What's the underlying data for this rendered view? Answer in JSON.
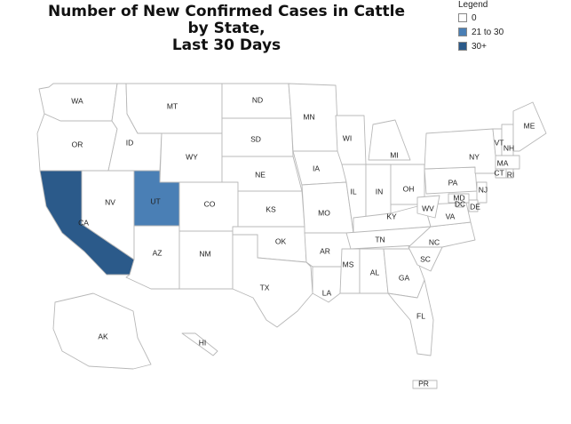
{
  "title": {
    "line1": "Number of New Confirmed Cases in Cattle by State,",
    "line2": "Last 30 Days"
  },
  "legend": {
    "title": "Legend",
    "items": [
      {
        "label": "0",
        "color": "#ffffff"
      },
      {
        "label": "21 to 30",
        "color": "#4a7fb5"
      },
      {
        "label": "30+",
        "color": "#2b5a8a"
      }
    ]
  },
  "states": [
    {
      "abbr": "WA",
      "category": "0"
    },
    {
      "abbr": "OR",
      "category": "0"
    },
    {
      "abbr": "CA",
      "category": "30+"
    },
    {
      "abbr": "NV",
      "category": "0"
    },
    {
      "abbr": "ID",
      "category": "0"
    },
    {
      "abbr": "MT",
      "category": "0"
    },
    {
      "abbr": "WY",
      "category": "0"
    },
    {
      "abbr": "UT",
      "category": "21 to 30"
    },
    {
      "abbr": "AZ",
      "category": "0"
    },
    {
      "abbr": "CO",
      "category": "0"
    },
    {
      "abbr": "NM",
      "category": "0"
    },
    {
      "abbr": "ND",
      "category": "0"
    },
    {
      "abbr": "SD",
      "category": "0"
    },
    {
      "abbr": "NE",
      "category": "0"
    },
    {
      "abbr": "KS",
      "category": "0"
    },
    {
      "abbr": "OK",
      "category": "0"
    },
    {
      "abbr": "TX",
      "category": "0"
    },
    {
      "abbr": "MN",
      "category": "0"
    },
    {
      "abbr": "IA",
      "category": "0"
    },
    {
      "abbr": "MO",
      "category": "0"
    },
    {
      "abbr": "AR",
      "category": "0"
    },
    {
      "abbr": "LA",
      "category": "0"
    },
    {
      "abbr": "WI",
      "category": "0"
    },
    {
      "abbr": "IL",
      "category": "0"
    },
    {
      "abbr": "MI",
      "category": "0"
    },
    {
      "abbr": "IN",
      "category": "0"
    },
    {
      "abbr": "OH",
      "category": "0"
    },
    {
      "abbr": "KY",
      "category": "0"
    },
    {
      "abbr": "TN",
      "category": "0"
    },
    {
      "abbr": "MS",
      "category": "0"
    },
    {
      "abbr": "AL",
      "category": "0"
    },
    {
      "abbr": "GA",
      "category": "0"
    },
    {
      "abbr": "FL",
      "category": "0"
    },
    {
      "abbr": "SC",
      "category": "0"
    },
    {
      "abbr": "NC",
      "category": "0"
    },
    {
      "abbr": "VA",
      "category": "0"
    },
    {
      "abbr": "WV",
      "category": "0"
    },
    {
      "abbr": "PA",
      "category": "0"
    },
    {
      "abbr": "NY",
      "category": "0"
    },
    {
      "abbr": "VT",
      "category": "0"
    },
    {
      "abbr": "NH",
      "category": "0"
    },
    {
      "abbr": "ME",
      "category": "0"
    },
    {
      "abbr": "MA",
      "category": "0"
    },
    {
      "abbr": "CT",
      "category": "0"
    },
    {
      "abbr": "RI",
      "category": "0"
    },
    {
      "abbr": "NJ",
      "category": "0"
    },
    {
      "abbr": "DE",
      "category": "0"
    },
    {
      "abbr": "MD",
      "category": "0"
    },
    {
      "abbr": "DC",
      "category": "0"
    },
    {
      "abbr": "AK",
      "category": "0"
    },
    {
      "abbr": "HI",
      "category": "0"
    },
    {
      "abbr": "PR",
      "category": "0"
    }
  ]
}
